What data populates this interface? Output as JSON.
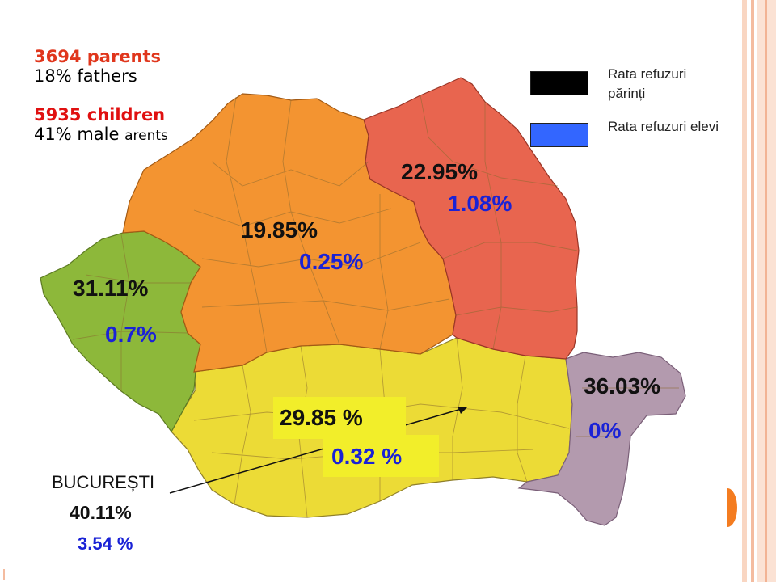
{
  "stats": {
    "parents_line": "3694 parents",
    "fathers_line": "18% fathers",
    "children_line": "5935 children",
    "male_line": "41% male",
    "male_suffix": "arents"
  },
  "legend": {
    "parents_label": "Rata refuzuri părinți",
    "students_label": "Rata refuzuri elevi",
    "parents_color": "#000000",
    "students_color": "#3366ff"
  },
  "regions": [
    {
      "id": "west",
      "parent_rate": "31.11%",
      "student_rate": "0.7%",
      "color": "#8db83a"
    },
    {
      "id": "center-north",
      "parent_rate": "19.85%",
      "student_rate": "0.25%",
      "color": "#f39431"
    },
    {
      "id": "north-east",
      "parent_rate": "22.95%",
      "student_rate": "1.08%",
      "color": "#e8654f"
    },
    {
      "id": "south",
      "parent_rate": "29.85 %",
      "student_rate": "0.32 %",
      "color": "#ecdb36"
    },
    {
      "id": "south-east",
      "parent_rate": "36.03%",
      "student_rate": "0%",
      "color": "#b39aae"
    }
  ],
  "bucharest": {
    "name": "BUCUREȘTI",
    "parent_rate": "40.11%",
    "student_rate": "3.54 %"
  },
  "colors": {
    "parents_text": "#e0361c",
    "children_text": "#e01010",
    "student_rate_text": "#1a22d6",
    "border_stripe": "#f4c4a8",
    "accent_orange": "#f47c20"
  }
}
